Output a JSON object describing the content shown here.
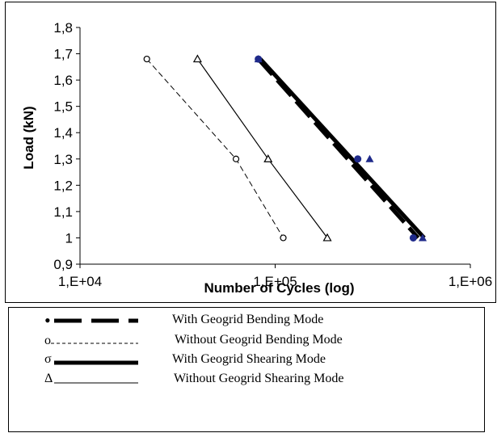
{
  "chart_data": {
    "type": "line",
    "xlabel": "Number of  Cycles (log)",
    "ylabel": "Load (kN)",
    "x_scale": "log",
    "xlim": [
      10000,
      1000000
    ],
    "ylim": [
      0.9,
      1.8
    ],
    "x_ticks": [
      "1,E+04",
      "1,E+05",
      "1,E+06"
    ],
    "y_ticks": [
      "0,9",
      "1",
      "1,1",
      "1,2",
      "1,3",
      "1,4",
      "1,5",
      "1,6",
      "1,7",
      "1,8"
    ],
    "grid": false,
    "series": [
      {
        "name": "With Geogrid Bending Mode",
        "legend_marker": "•",
        "style": "thick-dashed",
        "color": "#000000",
        "marker_color": "#1f2a8a",
        "points": [
          {
            "x": 82000,
            "y": 1.68
          },
          {
            "x": 265000,
            "y": 1.3
          },
          {
            "x": 510000,
            "y": 1.0
          }
        ],
        "trend": [
          {
            "x": 82000,
            "y": 1.68
          },
          {
            "x": 540000,
            "y": 1.0
          }
        ]
      },
      {
        "name": "Without Geogrid Bending Mode",
        "legend_marker": "o",
        "style": "thin-dashed",
        "color": "#000000",
        "marker": "circle",
        "points": [
          {
            "x": 22000,
            "y": 1.68
          },
          {
            "x": 63000,
            "y": 1.3
          },
          {
            "x": 110000,
            "y": 1.0
          }
        ]
      },
      {
        "name": "With Geogrid Shearing Mode",
        "legend_marker": "σ",
        "style": "thick-solid",
        "color": "#000000",
        "marker_color": "#1f2a8a",
        "points": [
          {
            "x": 82000,
            "y": 1.68
          },
          {
            "x": 305000,
            "y": 1.3
          },
          {
            "x": 570000,
            "y": 1.0
          }
        ],
        "trend": [
          {
            "x": 84000,
            "y": 1.68
          },
          {
            "x": 580000,
            "y": 1.0
          }
        ]
      },
      {
        "name": "Without Geogrid Shearing Mode",
        "legend_marker": "Δ",
        "style": "thin-solid",
        "color": "#000000",
        "marker": "triangle",
        "points": [
          {
            "x": 40000,
            "y": 1.68
          },
          {
            "x": 92000,
            "y": 1.3
          },
          {
            "x": 185000,
            "y": 1.0
          }
        ]
      }
    ]
  }
}
